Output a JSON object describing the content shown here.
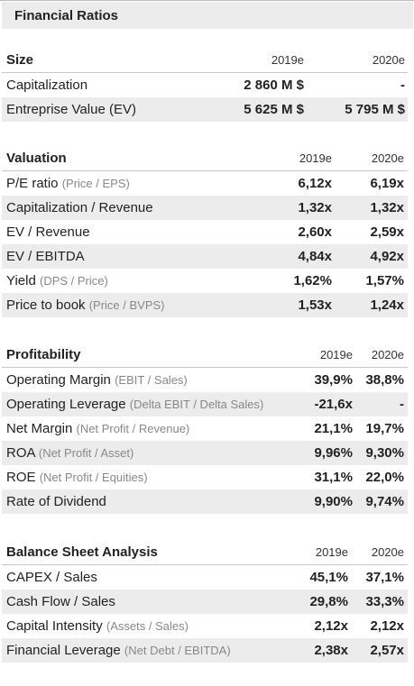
{
  "header": {
    "title": "Financial Ratios"
  },
  "size": {
    "title": "Size",
    "cols": [
      "2019e",
      "2020e"
    ],
    "rows": [
      {
        "label": "Capitalization",
        "sub": "",
        "v1": "2 860 M $",
        "v2": "-"
      },
      {
        "label": "Entreprise Value (EV)",
        "sub": "",
        "v1": "5 625 M $",
        "v2": "5 795 M $"
      }
    ]
  },
  "valuation": {
    "title": "Valuation",
    "cols": [
      "2019e",
      "2020e"
    ],
    "rows": [
      {
        "label": "P/E ratio",
        "sub": "(Price / EPS)",
        "v1": "6,12x",
        "v2": "6,19x"
      },
      {
        "label": "Capitalization / Revenue",
        "sub": "",
        "v1": "1,32x",
        "v2": "1,32x"
      },
      {
        "label": "EV / Revenue",
        "sub": "",
        "v1": "2,60x",
        "v2": "2,59x"
      },
      {
        "label": "EV / EBITDA",
        "sub": "",
        "v1": "4,84x",
        "v2": "4,92x"
      },
      {
        "label": "Yield",
        "sub": "(DPS / Price)",
        "v1": "1,62%",
        "v2": "1,57%"
      },
      {
        "label": "Price to book",
        "sub": "(Price / BVPS)",
        "v1": "1,53x",
        "v2": "1,24x"
      }
    ]
  },
  "profitability": {
    "title": "Profitability",
    "cols": [
      "2019e",
      "2020e"
    ],
    "rows": [
      {
        "label": "Operating Margin",
        "sub": "(EBIT / Sales)",
        "v1": "39,9%",
        "v2": "38,8%"
      },
      {
        "label": "Operating Leverage",
        "sub": "(Delta EBIT / Delta Sales)",
        "v1": "-21,6x",
        "v2": "-"
      },
      {
        "label": "Net Margin",
        "sub": "(Net Profit / Revenue)",
        "v1": "21,1%",
        "v2": "19,7%"
      },
      {
        "label": "ROA",
        "sub": "(Net Profit / Asset)",
        "v1": "9,96%",
        "v2": "9,30%"
      },
      {
        "label": "ROE",
        "sub": "(Net Profit / Equities)",
        "v1": "31,1%",
        "v2": "22,0%"
      },
      {
        "label": "Rate of Dividend",
        "sub": "",
        "v1": "9,90%",
        "v2": "9,74%"
      }
    ]
  },
  "balance": {
    "title": "Balance Sheet Analysis",
    "cols": [
      "2019e",
      "2020e"
    ],
    "rows": [
      {
        "label": "CAPEX / Sales",
        "sub": "",
        "v1": "45,1%",
        "v2": "37,1%"
      },
      {
        "label": "Cash Flow / Sales",
        "sub": "",
        "v1": "29,8%",
        "v2": "33,3%"
      },
      {
        "label": "Capital Intensity",
        "sub": "(Assets / Sales)",
        "v1": "2,12x",
        "v2": "2,12x"
      },
      {
        "label": "Financial Leverage",
        "sub": "(Net Debt / EBITDA)",
        "v1": "2,38x",
        "v2": "2,57x"
      }
    ]
  }
}
